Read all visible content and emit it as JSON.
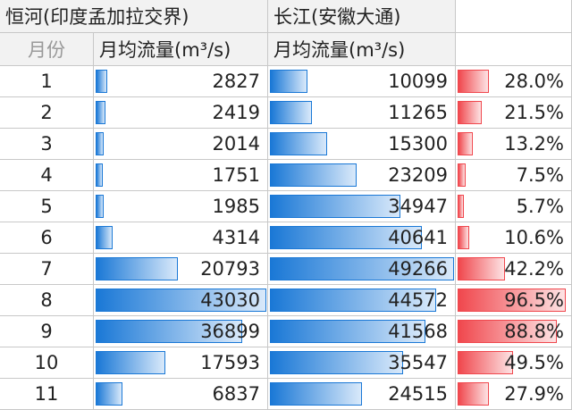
{
  "header": {
    "ganges_title": "恒河(印度孟加拉交界)",
    "yangtze_title": "长江(安徽大通)",
    "month_label": "月份",
    "ganges_unit": "月均流量(m³/s)",
    "yangtze_unit": "月均流量(m³/s)"
  },
  "table": {
    "rows": [
      {
        "month": "1",
        "ganges": 2827,
        "yangtze": 10099,
        "ratio": 28.0,
        "ratio_label": "28.0%"
      },
      {
        "month": "2",
        "ganges": 2419,
        "yangtze": 11265,
        "ratio": 21.5,
        "ratio_label": "21.5%"
      },
      {
        "month": "3",
        "ganges": 2014,
        "yangtze": 15300,
        "ratio": 13.2,
        "ratio_label": "13.2%"
      },
      {
        "month": "4",
        "ganges": 1751,
        "yangtze": 23209,
        "ratio": 7.5,
        "ratio_label": "7.5%"
      },
      {
        "month": "5",
        "ganges": 1985,
        "yangtze": 34947,
        "ratio": 5.7,
        "ratio_label": "5.7%"
      },
      {
        "month": "6",
        "ganges": 4314,
        "yangtze": 40641,
        "ratio": 10.6,
        "ratio_label": "10.6%"
      },
      {
        "month": "7",
        "ganges": 20793,
        "yangtze": 49266,
        "ratio": 42.2,
        "ratio_label": "42.2%"
      },
      {
        "month": "8",
        "ganges": 43030,
        "yangtze": 44572,
        "ratio": 96.5,
        "ratio_label": "96.5%"
      },
      {
        "month": "9",
        "ganges": 36899,
        "yangtze": 41568,
        "ratio": 88.8,
        "ratio_label": "88.8%"
      },
      {
        "month": "10",
        "ganges": 17593,
        "yangtze": 35547,
        "ratio": 49.5,
        "ratio_label": "49.5%"
      },
      {
        "month": "11",
        "ganges": 6837,
        "yangtze": 24515,
        "ratio": 27.9,
        "ratio_label": "27.9%"
      }
    ]
  }
}
